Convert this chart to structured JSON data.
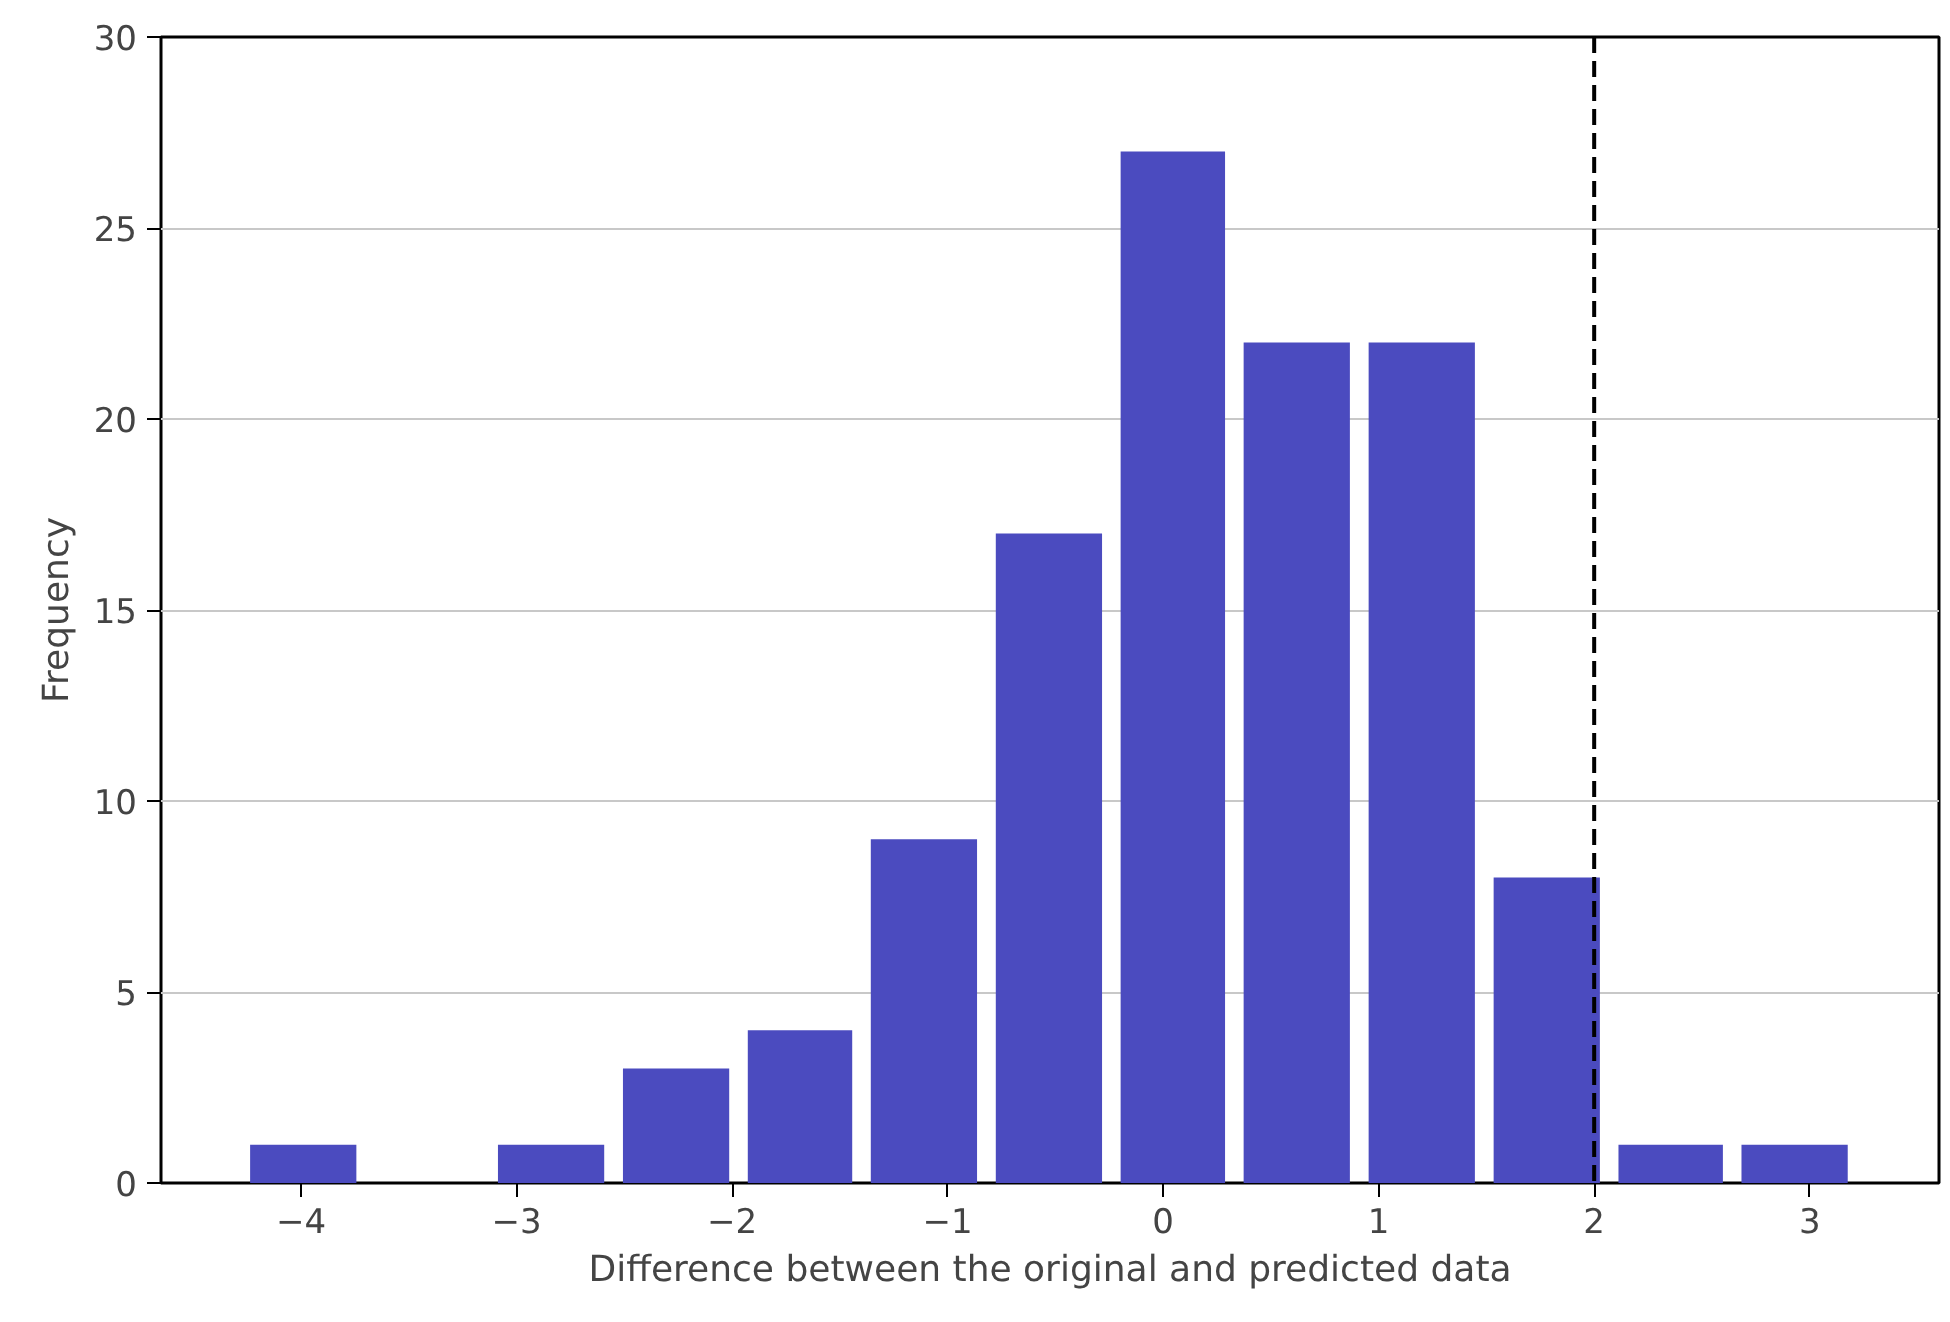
{
  "chart_data": {
    "type": "histogram",
    "xlabel": "Difference between the original and predicted data",
    "ylabel": "Frequency",
    "bins": [
      -4.28,
      -3.7,
      -3.13,
      -2.55,
      -1.97,
      -1.4,
      -0.82,
      -0.24,
      0.33,
      0.91,
      1.49,
      2.07,
      2.64,
      3.22
    ],
    "values": [
      1,
      0,
      1,
      3,
      4,
      9,
      17,
      27,
      22,
      22,
      8,
      1,
      1
    ],
    "color": "#4b4bbf",
    "xlim": [
      -4.65,
      3.6
    ],
    "ylim": [
      0,
      30
    ],
    "xticks": [
      {
        "value": -4,
        "label": "−4"
      },
      {
        "value": -3,
        "label": "−3"
      },
      {
        "value": -2,
        "label": "−2"
      },
      {
        "value": -1,
        "label": "−1"
      },
      0,
      1,
      2,
      3
    ],
    "yticks": [
      0,
      5,
      10,
      15,
      20,
      25,
      30
    ],
    "grid": "y",
    "ref_lines": [
      {
        "axis": "x",
        "value": 2,
        "color": "#000000",
        "line_style": "dashed"
      }
    ]
  }
}
